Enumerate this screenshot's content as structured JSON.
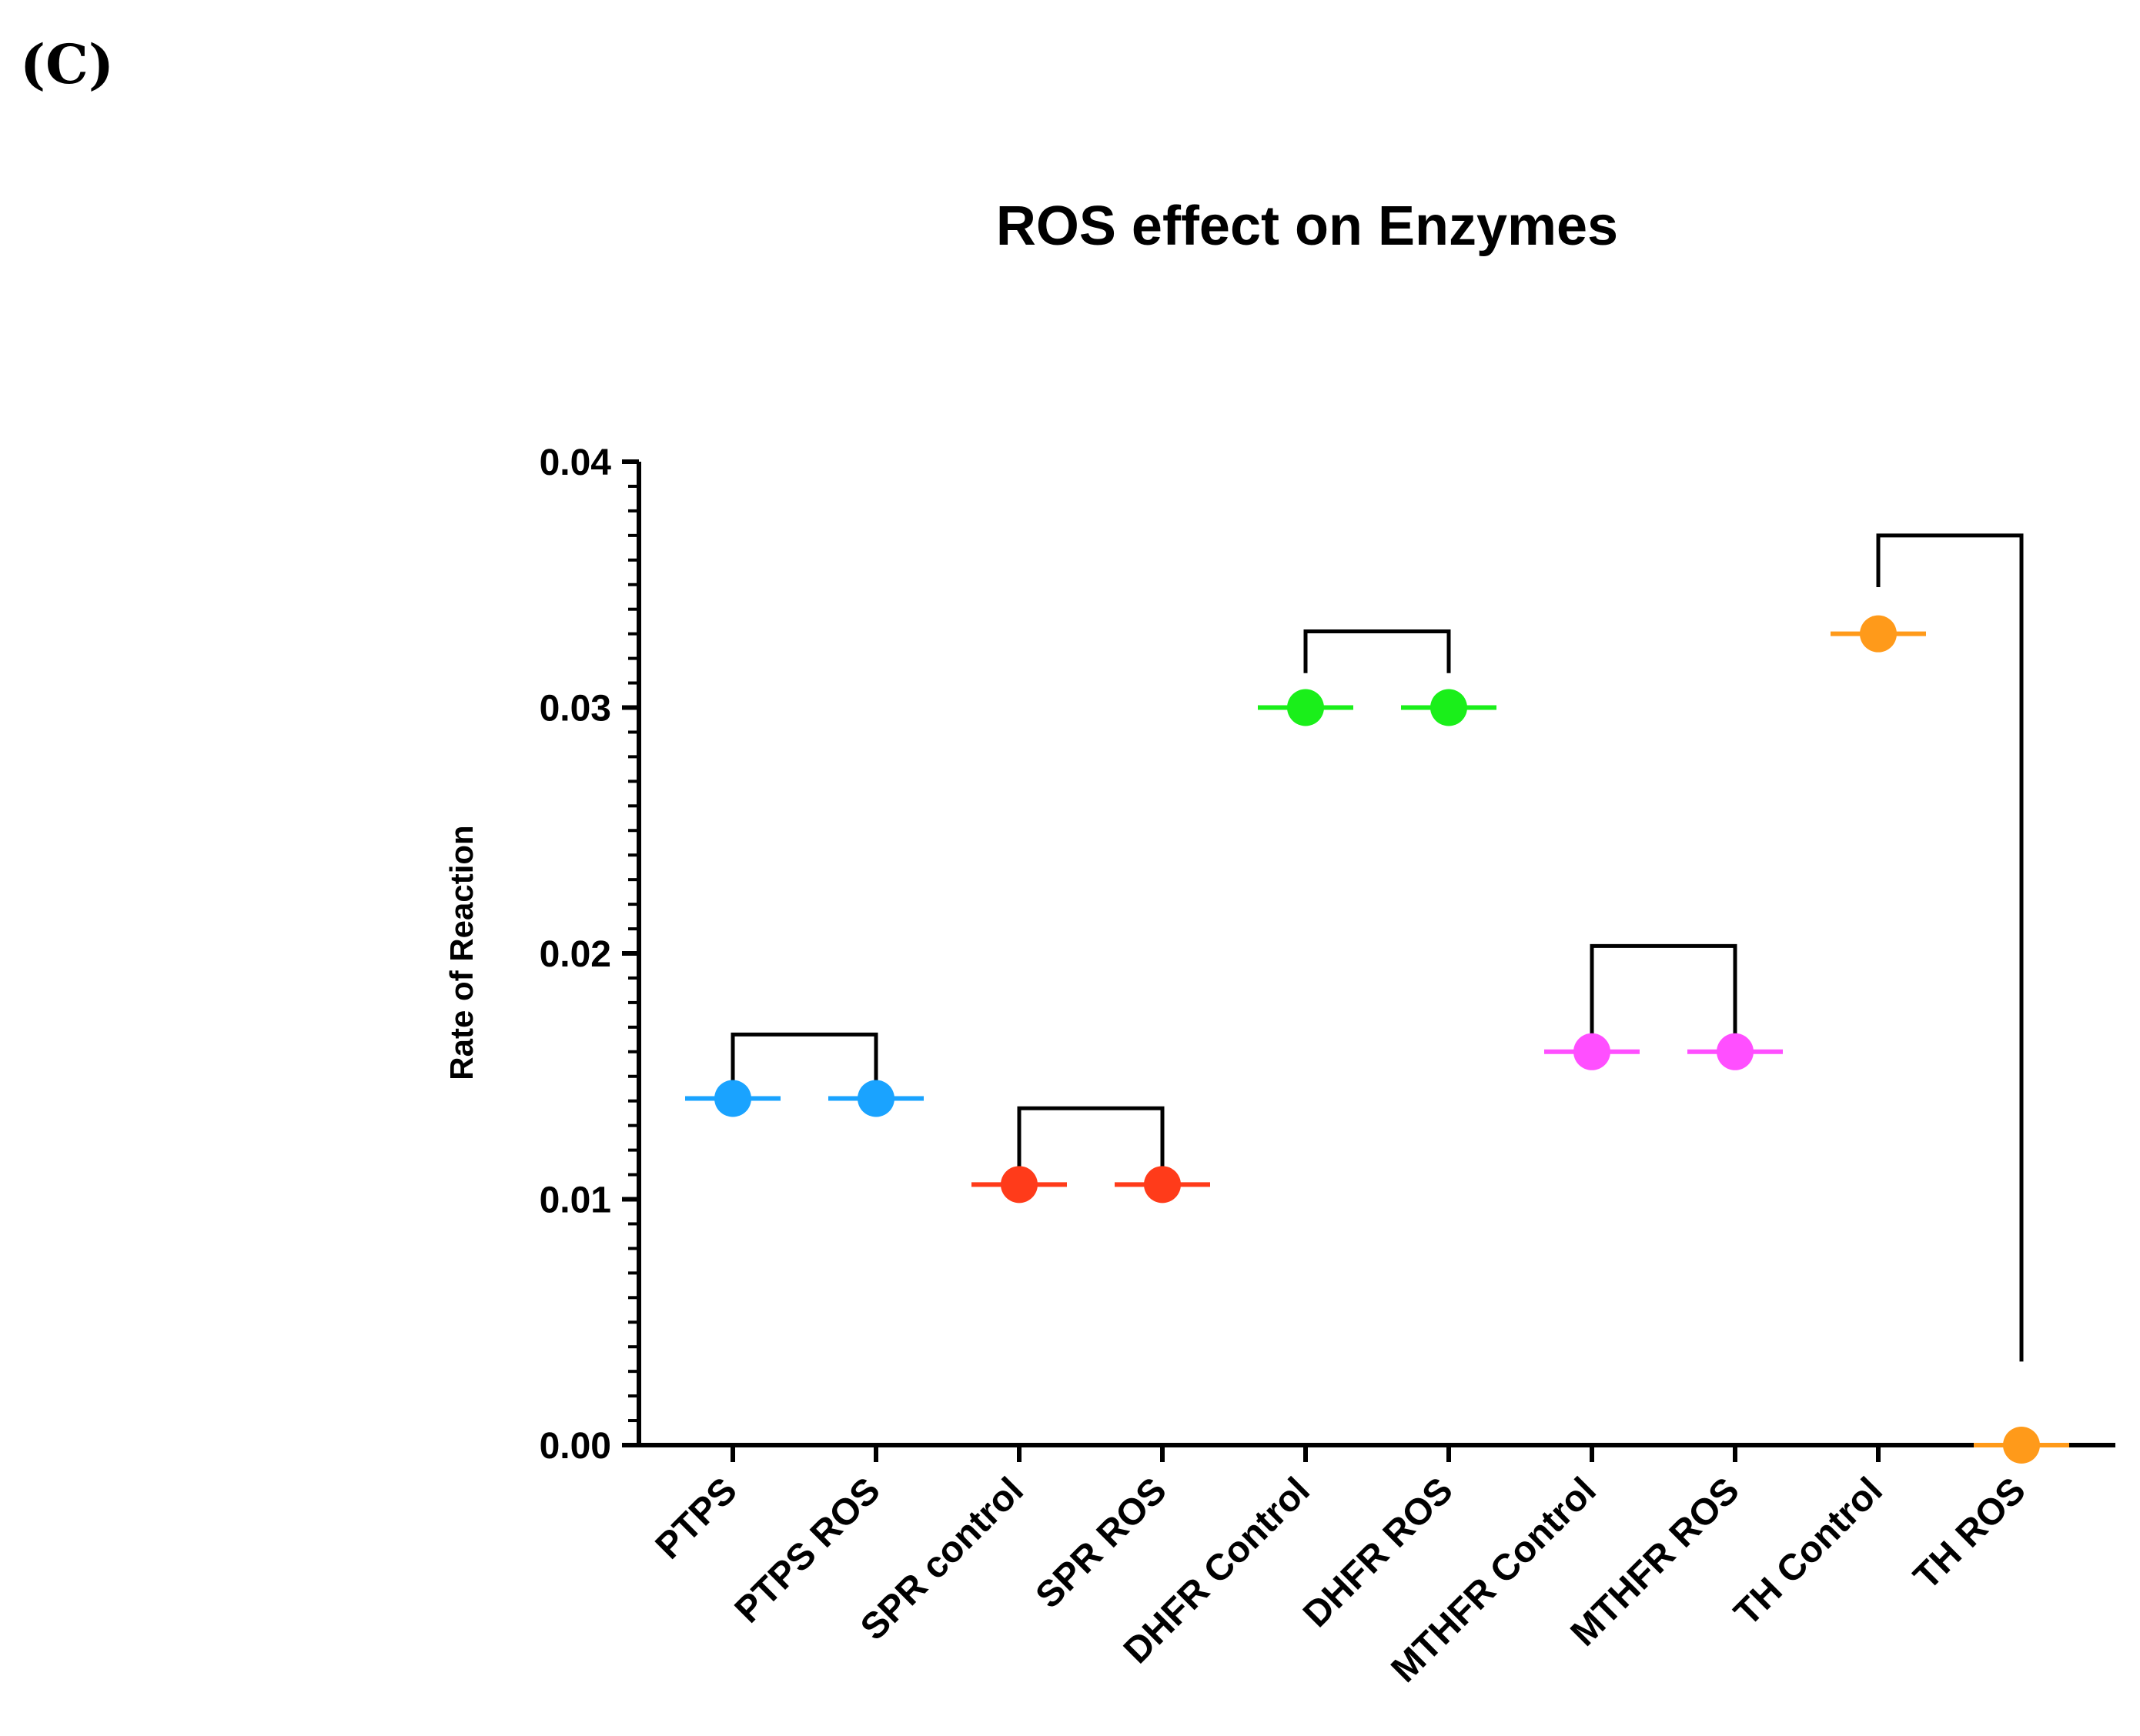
{
  "panel_label": "(C)",
  "chart_data": {
    "type": "scatter",
    "title": "ROS effect on Enzymes",
    "xlabel": "",
    "ylabel": "Rate of Reaction",
    "ylim": [
      0,
      0.04
    ],
    "yticks": [
      "0.00",
      "0.01",
      "0.02",
      "0.03",
      "0.04"
    ],
    "ytick_values": [
      0,
      0.01,
      0.02,
      0.03,
      0.04
    ],
    "minor_ticks_per_major": 10,
    "categories": [
      "PTPS",
      "PTPS ROS",
      "SPR control",
      "SPR ROS",
      "DHFR Control",
      "DHFR ROS",
      "MTHFR Control",
      "MTHFR ROS",
      "TH Control",
      "TH ROS"
    ],
    "values": [
      0.0141,
      0.0141,
      0.0106,
      0.0106,
      0.03,
      0.03,
      0.016,
      0.016,
      0.033,
      0.0
    ],
    "colors": [
      "#1aa3ff",
      "#1aa3ff",
      "#ff3b1a",
      "#ff3b1a",
      "#1aef1a",
      "#1aef1a",
      "#ff4fff",
      "#ff4fff",
      "#ff9a1a",
      "#ff9a1a"
    ],
    "comparisons": [
      {
        "from": 0,
        "to": 1,
        "top": 0.0167,
        "left_end": 0.0145,
        "right_end": 0.0145
      },
      {
        "from": 2,
        "to": 3,
        "top": 0.0137,
        "left_end": 0.0111,
        "right_end": 0.0111
      },
      {
        "from": 4,
        "to": 5,
        "top": 0.0331,
        "left_end": 0.0314,
        "right_end": 0.0314
      },
      {
        "from": 6,
        "to": 7,
        "top": 0.0203,
        "left_end": 0.0165,
        "right_end": 0.0165
      },
      {
        "from": 8,
        "to": 9,
        "top": 0.037,
        "left_end": 0.0349,
        "right_end": 0.0034
      }
    ]
  }
}
